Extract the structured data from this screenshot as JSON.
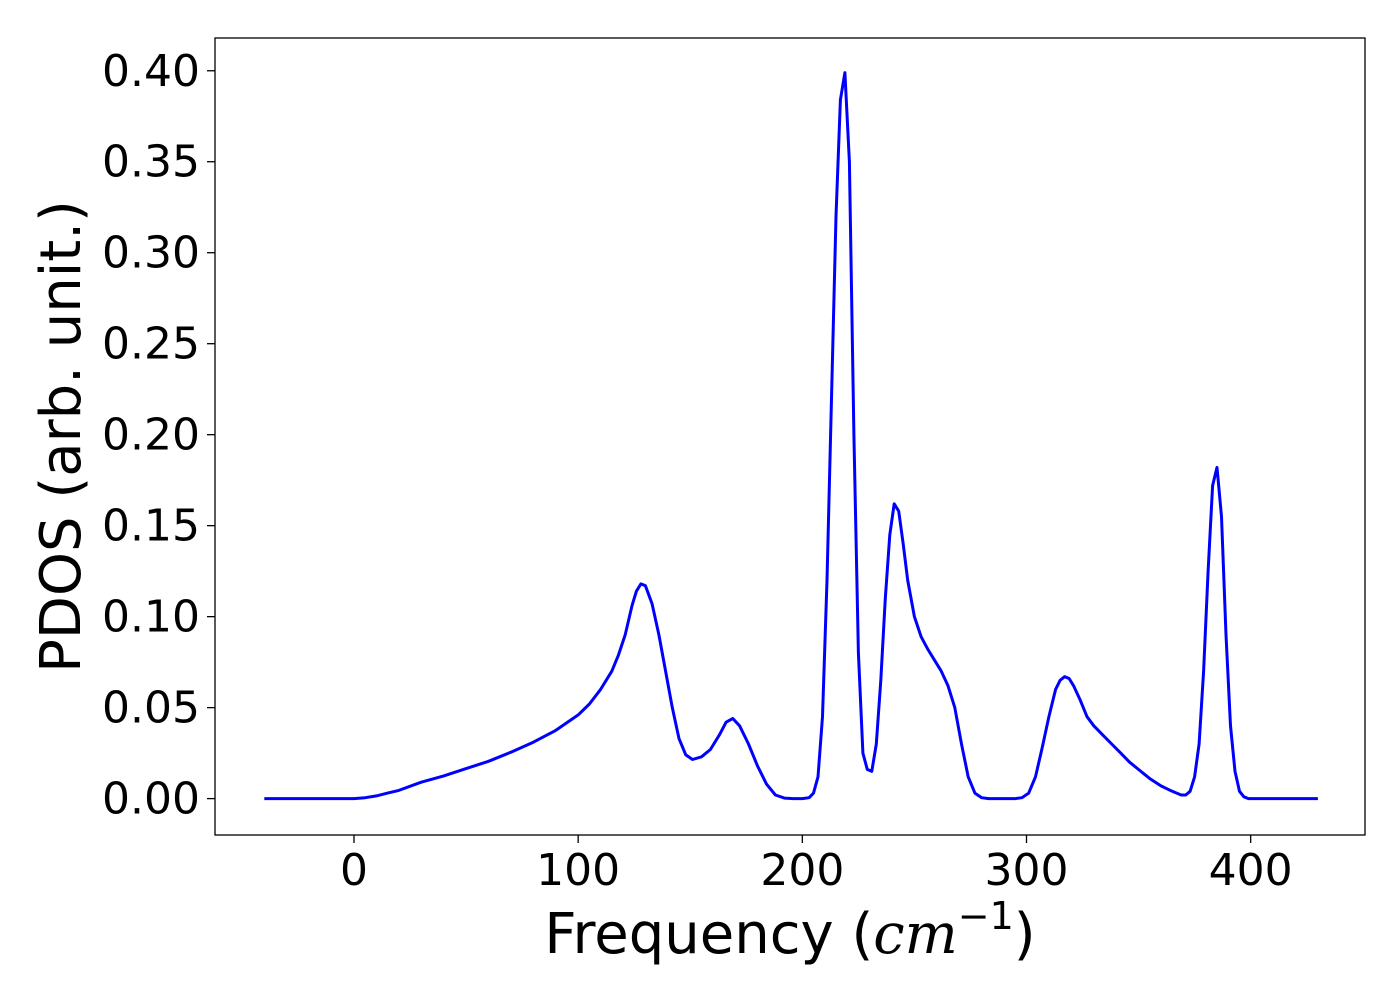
{
  "chart_data": {
    "type": "line",
    "xlabel_prefix": "Frequency (",
    "xlabel_unit": "cm",
    "xlabel_exponent": "−1",
    "xlabel_suffix": ")",
    "ylabel": "PDOS (arb. unit.)",
    "xlim": [
      -62,
      451
    ],
    "ylim": [
      -0.02,
      0.418
    ],
    "xticks": [
      0,
      100,
      200,
      300,
      400
    ],
    "xtick_labels": [
      "0",
      "100",
      "200",
      "300",
      "400"
    ],
    "yticks": [
      0.0,
      0.05,
      0.1,
      0.15,
      0.2,
      0.25,
      0.3,
      0.35,
      0.4
    ],
    "ytick_labels": [
      "0.00",
      "0.05",
      "0.10",
      "0.15",
      "0.20",
      "0.25",
      "0.30",
      "0.35",
      "0.40"
    ],
    "grid": false,
    "colors": {
      "line": "#0000ff",
      "axes": "#000000"
    },
    "series": [
      {
        "x": [
          -40,
          -20,
          0,
          5,
          10,
          15,
          20,
          30,
          40,
          50,
          60,
          70,
          80,
          90,
          100,
          105,
          110,
          115,
          118,
          121,
          124,
          126,
          128,
          130,
          133,
          136,
          139,
          142,
          145,
          148,
          151,
          155,
          159,
          163,
          166,
          169,
          172,
          176,
          180,
          184,
          188,
          192,
          196,
          200,
          203,
          205,
          207,
          209,
          211,
          213,
          215,
          217,
          219,
          221,
          223,
          225,
          227,
          229,
          231,
          233,
          235,
          237,
          239,
          241,
          243,
          245,
          247,
          250,
          253,
          256,
          259,
          262,
          265,
          268,
          271,
          274,
          277,
          280,
          283,
          287,
          291,
          295,
          298,
          301,
          304,
          307,
          310,
          313,
          315,
          317,
          319,
          321,
          324,
          327,
          330,
          334,
          338,
          342,
          346,
          350,
          355,
          360,
          365,
          369,
          371,
          373,
          375,
          377,
          379,
          381,
          383,
          385,
          387,
          389,
          391,
          393,
          395,
          397,
          399,
          402,
          406,
          410,
          420,
          430
        ],
        "y": [
          0,
          0,
          0,
          0.0005,
          0.0015,
          0.003,
          0.0045,
          0.009,
          0.0125,
          0.0165,
          0.0205,
          0.0255,
          0.031,
          0.0375,
          0.046,
          0.052,
          0.06,
          0.07,
          0.079,
          0.09,
          0.106,
          0.114,
          0.118,
          0.117,
          0.107,
          0.09,
          0.07,
          0.05,
          0.033,
          0.024,
          0.0215,
          0.023,
          0.027,
          0.035,
          0.042,
          0.044,
          0.04,
          0.03,
          0.018,
          0.008,
          0.002,
          0.0003,
          0,
          0,
          0.0005,
          0.003,
          0.012,
          0.045,
          0.12,
          0.22,
          0.32,
          0.384,
          0.399,
          0.35,
          0.2,
          0.08,
          0.025,
          0.016,
          0.015,
          0.03,
          0.065,
          0.11,
          0.145,
          0.162,
          0.158,
          0.14,
          0.12,
          0.1,
          0.089,
          0.082,
          0.076,
          0.07,
          0.062,
          0.05,
          0.03,
          0.012,
          0.003,
          0.0005,
          0,
          0,
          0,
          0,
          0.0005,
          0.003,
          0.012,
          0.028,
          0.045,
          0.06,
          0.065,
          0.067,
          0.066,
          0.062,
          0.054,
          0.045,
          0.04,
          0.035,
          0.03,
          0.025,
          0.02,
          0.016,
          0.011,
          0.007,
          0.004,
          0.002,
          0.002,
          0.004,
          0.012,
          0.03,
          0.07,
          0.125,
          0.172,
          0.182,
          0.155,
          0.09,
          0.04,
          0.015,
          0.004,
          0.001,
          0,
          0,
          0,
          0,
          0,
          0
        ]
      }
    ]
  }
}
